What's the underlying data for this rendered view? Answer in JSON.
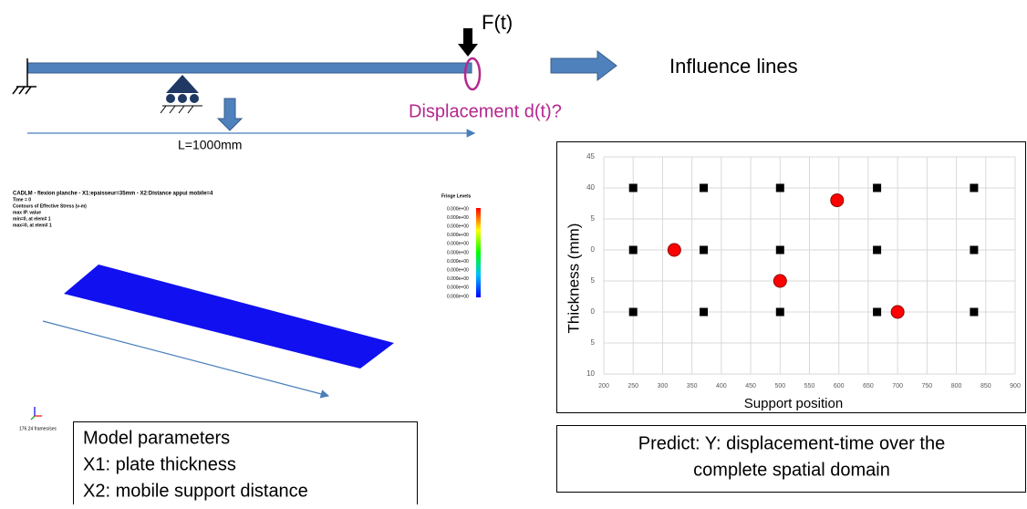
{
  "beam": {
    "force_label": "F(t)",
    "displacement_label": "Displacement d(t)?",
    "length_label": "L=1000mm",
    "result_label": "Influence lines"
  },
  "simulation": {
    "header": [
      "CADLM - flexion planche - X1:epaisseur=35mm - X2:Distance appui mobile=4",
      "Time =     0",
      "Contours of Effective Stress (v-m)",
      "max IP. value",
      " min=0, at elem# 1",
      " max=0, at elem# 1"
    ],
    "fringe_title": "Fringe Levels",
    "fringe_levels": [
      "0.000e+00",
      "0.000e+00",
      "0.000e+00",
      "0.000e+00",
      "0.000e+00",
      "0.000e+00",
      "0.000e+00",
      "0.000e+00",
      "0.000e+00",
      "0.000e+00",
      "0.000e+00"
    ],
    "frame_rate": "176.24 frames/sec"
  },
  "model_box": {
    "lines": [
      "Model parameters",
      "X1: plate thickness",
      "X2: mobile support distance"
    ]
  },
  "predict_box": {
    "lines": [
      "Predict: Y: displacement-time over the",
      "complete spatial domain"
    ]
  },
  "chart_data": {
    "type": "scatter",
    "xlabel": "Support position",
    "ylabel": "Thickness (mm)",
    "xlim": [
      200,
      900
    ],
    "xticks": [
      200,
      250,
      300,
      350,
      400,
      450,
      500,
      550,
      600,
      650,
      700,
      750,
      800,
      850,
      900
    ],
    "ylim": [
      10,
      45
    ],
    "yticks": [
      45,
      40,
      {
        "value": 35,
        "label": "5"
      },
      {
        "value": 30,
        "label": "0"
      },
      {
        "value": 25,
        "label": "5"
      },
      {
        "value": 20,
        "label": "0"
      },
      {
        "value": 15,
        "label": "5"
      },
      10
    ],
    "grid": true,
    "series": [
      {
        "color": "#000000",
        "marker": "square",
        "x": [
          250,
          370,
          500,
          665,
          830,
          250,
          370,
          500,
          665,
          830,
          250,
          370,
          500,
          665,
          830
        ],
        "values": [
          40,
          40,
          40,
          40,
          40,
          30,
          30,
          30,
          30,
          30,
          20,
          20,
          20,
          20,
          20
        ]
      },
      {
        "color": "#ff0000",
        "marker": "circle",
        "x": [
          320,
          500,
          597,
          700
        ],
        "values": [
          30,
          25,
          38,
          20
        ]
      }
    ]
  }
}
